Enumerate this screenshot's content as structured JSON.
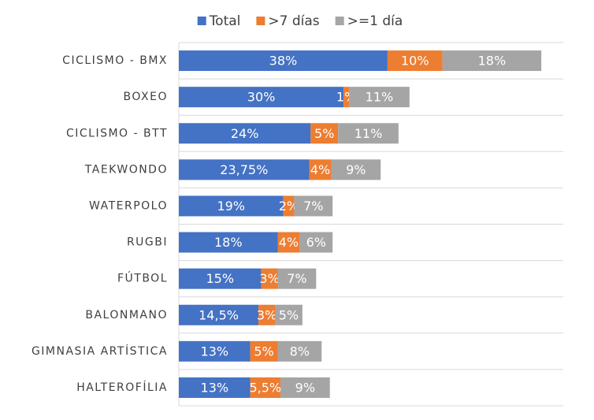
{
  "chart_data": {
    "type": "bar",
    "orientation": "horizontal",
    "stacked": true,
    "categories": [
      "CICLISMO - BMX",
      "BOXEO",
      "CICLISMO - BTT",
      "TAEKWONDO",
      "WATERPOLO",
      "RUGBI",
      "FÚTBOL",
      "BALONMANO",
      "GIMNASIA ARTÍSTICA",
      "HALTEROFÍLIA"
    ],
    "series": [
      {
        "name": "Total",
        "color": "#4472c4",
        "values": [
          38,
          30,
          24,
          23.75,
          19,
          18,
          15,
          14.5,
          13,
          13
        ],
        "value_labels": [
          "38%",
          "30%",
          "24%",
          "23,75%",
          "19%",
          "18%",
          "15%",
          "14,5%",
          "13%",
          "13%"
        ]
      },
      {
        "name": ">7 días",
        "color": "#ed7d31",
        "values": [
          10,
          1,
          5,
          4,
          2,
          4,
          3,
          3,
          5,
          5.5
        ],
        "value_labels": [
          "10%",
          "1%",
          "5%",
          "4%",
          "2%",
          "4%",
          "3%",
          "3%",
          "5%",
          "5,5%"
        ]
      },
      {
        "name": ">=1 día",
        "color": "#a5a5a5",
        "values": [
          18,
          11,
          11,
          9,
          7,
          6,
          7,
          5,
          8,
          9
        ],
        "value_labels": [
          "18%",
          "11%",
          "11%",
          "9%",
          "7%",
          "6%",
          "7%",
          "5%",
          "8%",
          "9%"
        ]
      }
    ],
    "xlim": [
      0,
      70
    ],
    "legend": "top"
  }
}
